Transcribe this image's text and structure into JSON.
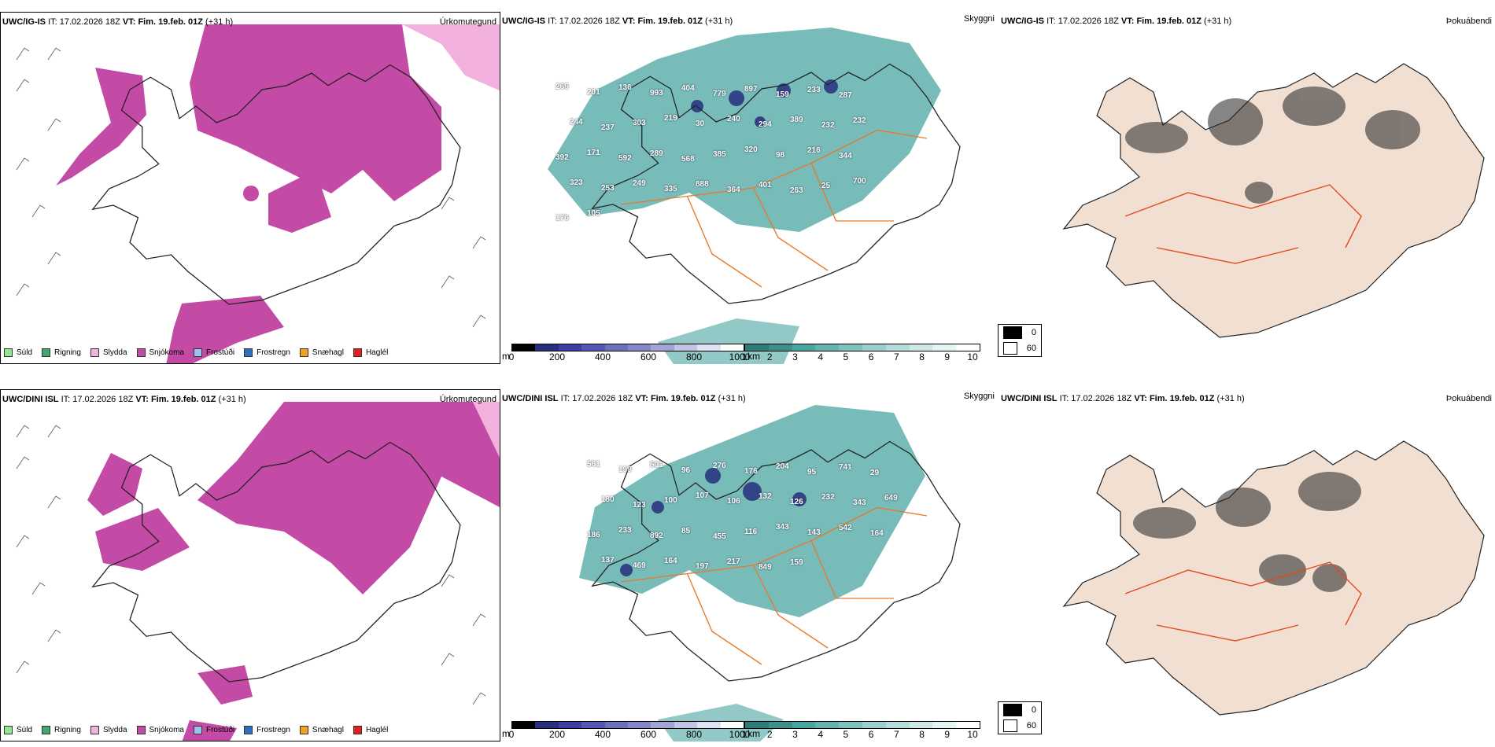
{
  "colors": {
    "snow": "#c34aa5",
    "sleet": "#f3b1dd",
    "rain": "#3fa86e",
    "drizzle": "#8fe88f",
    "teal": "#4aa5a2",
    "navy": "#27307e",
    "road": "#e77a2a",
    "land": "#f1dfd2"
  },
  "rows": [
    {
      "precip": {
        "model": "UWC/IG-IS",
        "it_label": "IT:",
        "it_value": "17.02.2026 18Z",
        "vt_label": "VT:",
        "vt_value": "Fim. 19.feb. 01Z",
        "lead": "(+31 h)",
        "name": "Úrkomutegund"
      },
      "ceiling": {
        "model": "UWC/IG-IS",
        "it_label": "IT:",
        "it_value": "17.02.2026 18Z",
        "vt_label": "VT:",
        "vt_value": "Fim. 19.feb. 01Z",
        "lead": "(+31 h)",
        "name": "Skyggni",
        "numbers": [
          "265",
          "201",
          "136",
          "993",
          "404",
          "779",
          "897",
          "159",
          "233",
          "287",
          "244",
          "237",
          "303",
          "219",
          "30",
          "240",
          "294",
          "389",
          "232",
          "232",
          "392",
          "171",
          "592",
          "289",
          "568",
          "385",
          "320",
          "98",
          "216",
          "344",
          "323",
          "253",
          "249",
          "335",
          "888",
          "364",
          "401",
          "263",
          "25",
          "700",
          "176",
          "105"
        ]
      },
      "fog": {
        "model": "UWC/IG-IS",
        "it_label": "IT:",
        "it_value": "17.02.2026 18Z",
        "vt_label": "VT:",
        "vt_value": "Fim. 19.feb. 01Z",
        "lead": "(+31 h)",
        "name": "Þokuábendi"
      }
    },
    {
      "precip": {
        "model": "UWC/DINI ISL",
        "it_label": "IT:",
        "it_value": "17.02.2026 18Z",
        "vt_label": "VT:",
        "vt_value": "Fim. 19.feb. 01Z",
        "lead": "(+31 h)",
        "name": "Úrkomutegund"
      },
      "ceiling": {
        "model": "UWC/DINI ISL",
        "it_label": "IT:",
        "it_value": "17.02.2026 18Z",
        "vt_label": "VT:",
        "vt_value": "Fim. 19.feb. 01Z",
        "lead": "(+31 h)",
        "name": "Skyggni",
        "numbers": [
          "561",
          "199",
          "501",
          "96",
          "276",
          "176",
          "204",
          "95",
          "741",
          "29",
          "180",
          "123",
          "100",
          "107",
          "106",
          "132",
          "126",
          "232",
          "343",
          "649",
          "186",
          "233",
          "892",
          "85",
          "455",
          "116",
          "343",
          "143",
          "542",
          "164",
          "137",
          "469",
          "164",
          "197",
          "217",
          "849",
          "159"
        ]
      },
      "fog": {
        "model": "UWC/DINI ISL",
        "it_label": "IT:",
        "it_value": "17.02.2026 18Z",
        "vt_label": "VT:",
        "vt_value": "Fim. 19.feb. 01Z",
        "lead": "(+31 h)",
        "name": "Þokuábendi"
      }
    }
  ],
  "precip_legend": [
    {
      "label": "Súld",
      "color": "#8fe88f"
    },
    {
      "label": "Rigning",
      "color": "#3fa86e"
    },
    {
      "label": "Slydda",
      "color": "#f3b1dd"
    },
    {
      "label": "Snjókoma",
      "color": "#c34aa5"
    },
    {
      "label": "Frostúði",
      "color": "#9cc3ee"
    },
    {
      "label": "Frostregn",
      "color": "#2f6fc0"
    },
    {
      "label": "Snæhagl",
      "color": "#f2a023"
    },
    {
      "label": "Haglél",
      "color": "#e5201b"
    }
  ],
  "height_scale": {
    "unit": "m",
    "ticks": [
      "0",
      "200",
      "400",
      "600",
      "800",
      "1000"
    ]
  },
  "vis_scale": {
    "unit": "km",
    "ticks": [
      "1",
      "2",
      "3",
      "4",
      "5",
      "6",
      "7",
      "8",
      "9",
      "10"
    ]
  },
  "fog_legend": [
    {
      "label": "0",
      "color": "#000000"
    },
    {
      "label": "60",
      "color": "#ffffff"
    }
  ]
}
